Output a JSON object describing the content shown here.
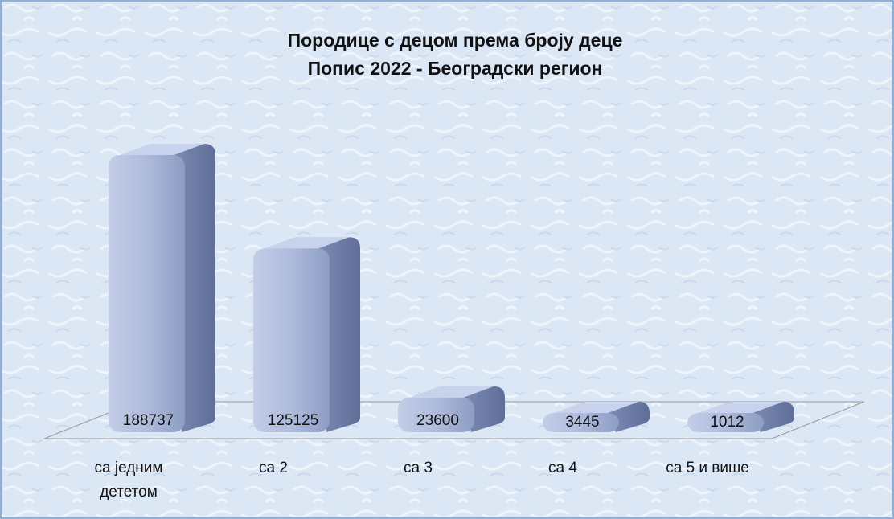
{
  "chart_data": {
    "type": "bar3d",
    "title": "Породице с децом према броју деце",
    "subtitle": "Попис 2022 - Београдски регион",
    "categories": [
      "са једним дететом",
      "са 2",
      "са 3",
      "са 4",
      "са 5 и више"
    ],
    "values": [
      188737,
      125125,
      23600,
      3445,
      1012
    ],
    "color": "#a9b6d8"
  }
}
